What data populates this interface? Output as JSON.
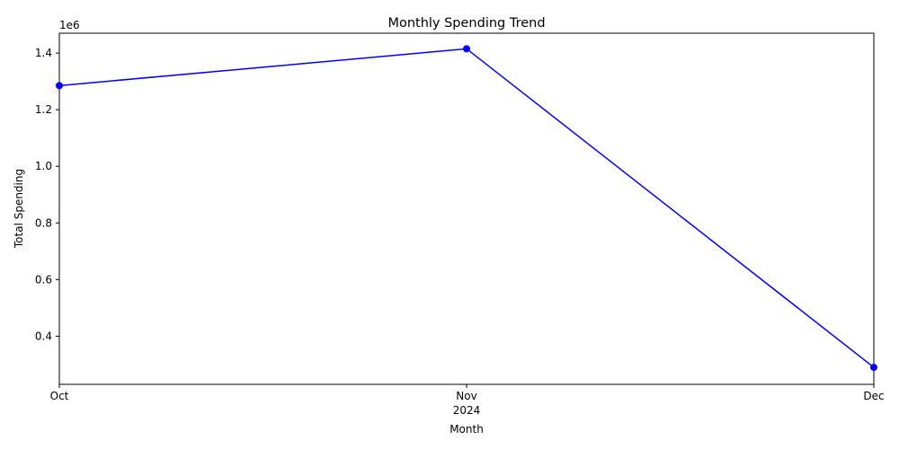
{
  "chart_data": {
    "type": "line",
    "title": "Monthly Spending Trend",
    "xlabel": "Month",
    "ylabel": "Total Spending",
    "y_offset_label": "1e6",
    "x_categories": [
      "Oct",
      "Nov",
      "Dec"
    ],
    "x_year_label": "2024",
    "series": [
      {
        "color": "#0000ff",
        "marker": "circle",
        "values": [
          1285000,
          1415000,
          290000
        ]
      }
    ],
    "ylim": [
      230000,
      1470000
    ],
    "y_ticks": [
      400000,
      600000,
      800000,
      1000000,
      1200000,
      1400000
    ],
    "y_tick_labels": [
      "0.4",
      "0.6",
      "0.8",
      "1.0",
      "1.2",
      "1.4"
    ],
    "grid": false,
    "legend": "none"
  }
}
